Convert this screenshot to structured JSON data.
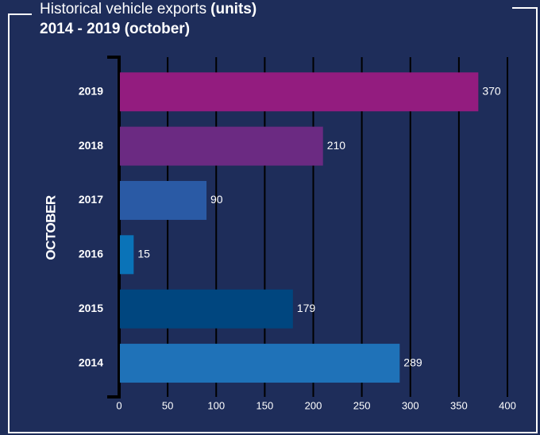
{
  "chart_data": {
    "type": "bar",
    "orientation": "horizontal",
    "title": "Historical vehicle exports",
    "unit": "(units)",
    "subtitle": "2014 - 2019 (october)",
    "y_label": "OCTOBER",
    "categories": [
      "2019",
      "2018",
      "2017",
      "2016",
      "2015",
      "2014"
    ],
    "values": [
      370,
      210,
      90,
      15,
      179,
      289
    ],
    "colors": [
      "#931c7f",
      "#6b2a82",
      "#2a5aa5",
      "#0a73b8",
      "#00467f",
      "#1f72b8"
    ],
    "xlim": [
      0,
      400
    ],
    "xticks": [
      0,
      50,
      100,
      150,
      200,
      250,
      300,
      350,
      400
    ],
    "grid": true
  }
}
